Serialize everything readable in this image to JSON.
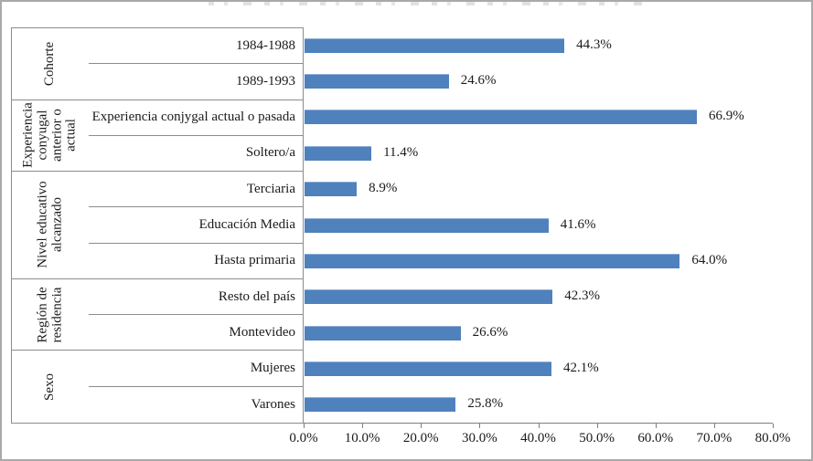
{
  "figure": {
    "background": "#ffffff",
    "outer_border_color": "#a9a9a9",
    "panel_line_color": "#8c8c8c",
    "axis_line_color": "#7f7f7f",
    "text_color": "#1a1a1a"
  },
  "chart_data": {
    "type": "bar",
    "orientation": "horizontal",
    "bar_color": "#4f81bd",
    "bar_highlight_color": "#8fafd6",
    "grid": false,
    "legend": "none",
    "xlim": [
      0,
      80
    ],
    "x_ticks": [
      "0.0%",
      "10.0%",
      "20.0%",
      "30.0%",
      "40.0%",
      "50.0%",
      "60.0%",
      "70.0%",
      "80.0%"
    ],
    "groups": [
      {
        "label": "Cohorte",
        "rows": [
          {
            "label": "1984-1988",
            "value": 44.3,
            "value_label": "44.3%"
          },
          {
            "label": "1989-1993",
            "value": 24.6,
            "value_label": "24.6%"
          }
        ]
      },
      {
        "label": "Experiencia conyugal anterior o actual",
        "rows": [
          {
            "label": "Experiencia conjygal actual o pasada",
            "value": 66.9,
            "value_label": "66.9%"
          },
          {
            "label": "Soltero/a",
            "value": 11.4,
            "value_label": "11.4%"
          }
        ]
      },
      {
        "label": "Nivel educativo alcanzado",
        "rows": [
          {
            "label": "Terciaria",
            "value": 8.9,
            "value_label": "8.9%"
          },
          {
            "label": "Educación Media",
            "value": 41.6,
            "value_label": "41.6%"
          },
          {
            "label": "Hasta primaria",
            "value": 64.0,
            "value_label": "64.0%"
          }
        ]
      },
      {
        "label": "Región de residencia",
        "rows": [
          {
            "label": "Resto del país",
            "value": 42.3,
            "value_label": "42.3%"
          },
          {
            "label": "Montevideo",
            "value": 26.6,
            "value_label": "26.6%"
          }
        ]
      },
      {
        "label": "Sexo",
        "rows": [
          {
            "label": "Mujeres",
            "value": 42.1,
            "value_label": "42.1%"
          },
          {
            "label": "Varones",
            "value": 25.8,
            "value_label": "25.8%"
          }
        ]
      }
    ]
  }
}
